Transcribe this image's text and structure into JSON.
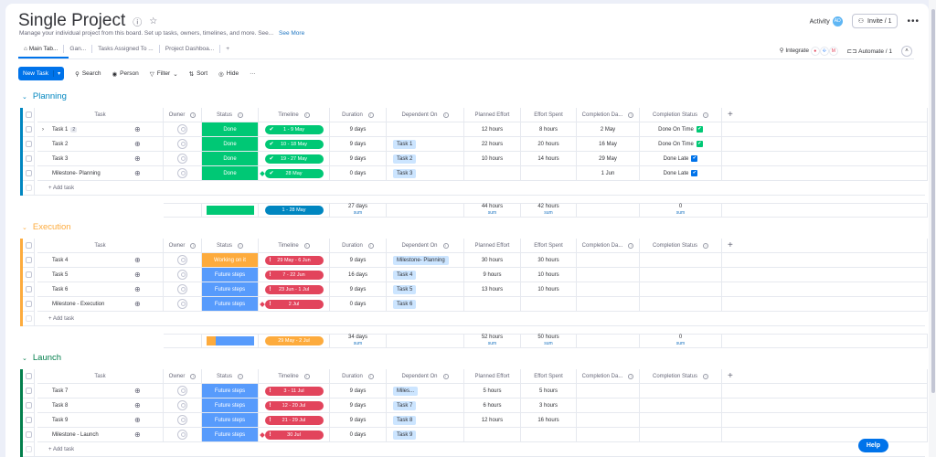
{
  "header": {
    "title": "Single Project",
    "description": "Manage your individual project from this board. Set up tasks, owners, timelines, and more. See...",
    "see_more": "See More",
    "activity": "Activity",
    "activity_avatar": "AD",
    "invite": "Invite / 1"
  },
  "tabs": [
    {
      "label": "Main Tab...",
      "active": true
    },
    {
      "label": "Gan..."
    },
    {
      "label": "Tasks Assigned To ..."
    },
    {
      "label": "Project Dashboa..."
    },
    {
      "label": "+"
    }
  ],
  "integrations": {
    "integrate": "Integrate",
    "automate": "Automate / 1"
  },
  "toolbar": {
    "new_task": "New Task",
    "search": "Search",
    "person": "Person",
    "filter": "Filter",
    "sort": "Sort",
    "hide": "Hide"
  },
  "columns": {
    "task": "Task",
    "owner": "Owner",
    "status": "Status",
    "timeline": "Timeline",
    "duration": "Duration",
    "dependent_on": "Dependent On",
    "planned_effort": "Planned Effort",
    "effort_spent": "Effort Spent",
    "completion_date": "Completion Da...",
    "completion_status": "Completion Status"
  },
  "colors": {
    "done": "#00c875",
    "working": "#fdab3d",
    "future": "#579bfc",
    "late": "#e2445c",
    "planning": "#0086c0",
    "execution": "#fdab3d",
    "launch": "#037f4c"
  },
  "add_task": "+ Add task",
  "sum_label": "sum",
  "groups": [
    {
      "name": "Planning",
      "color": "#0086c0",
      "rows": [
        {
          "task": "Task 1",
          "subitems": "2",
          "status": "Done",
          "status_color": "#00c875",
          "timeline": "1 - 9 May",
          "tl_color": "#00c875",
          "tl_mark": "✔",
          "duration": "9 days",
          "dependent": "",
          "planned": "12 hours",
          "spent": "8 hours",
          "cdate": "2 May",
          "cstatus": "Done On Time",
          "cstatus_color": "#00c875"
        },
        {
          "task": "Task 2",
          "status": "Done",
          "status_color": "#00c875",
          "timeline": "10 - 18 May",
          "tl_color": "#00c875",
          "tl_mark": "✔",
          "duration": "9 days",
          "dependent": "Task 1",
          "planned": "22 hours",
          "spent": "20 hours",
          "cdate": "16 May",
          "cstatus": "Done On Time",
          "cstatus_color": "#00c875"
        },
        {
          "task": "Task 3",
          "status": "Done",
          "status_color": "#00c875",
          "timeline": "19 - 27 May",
          "tl_color": "#00c875",
          "tl_mark": "✔",
          "duration": "9 days",
          "dependent": "Task 2",
          "planned": "10 hours",
          "spent": "14 hours",
          "cdate": "29 May",
          "cstatus": "Done Late",
          "cstatus_color": "#0073ea"
        },
        {
          "task": "Milestone- Planning",
          "milestone": true,
          "status": "Done",
          "status_color": "#00c875",
          "timeline": "28 May",
          "tl_color": "#00c875",
          "tl_mark": "✔",
          "duration": "0 days",
          "dependent": "Task 3",
          "planned": "",
          "spent": "",
          "cdate": "1 Jun",
          "cstatus": "Done Late",
          "cstatus_color": "#0073ea"
        }
      ],
      "summary": {
        "timeline": "1 - 28 May",
        "timeline_color": "#0086c0",
        "duration": "27 days",
        "planned": "44 hours",
        "spent": "42 hours",
        "cstatus": "0"
      }
    },
    {
      "name": "Execution",
      "color": "#fdab3d",
      "rows": [
        {
          "task": "Task 4",
          "status": "Working on it",
          "status_color": "#fdab3d",
          "timeline": "29 May - 6 Jun",
          "tl_color": "#e2445c",
          "tl_mark": "!",
          "duration": "9 days",
          "dependent": "Milestone- Planning",
          "planned": "30 hours",
          "spent": "30 hours",
          "cdate": "",
          "cstatus": ""
        },
        {
          "task": "Task 5",
          "status": "Future steps",
          "status_color": "#579bfc",
          "timeline": "7 - 22 Jun",
          "tl_color": "#e2445c",
          "tl_mark": "!",
          "duration": "16 days",
          "dependent": "Task 4",
          "planned": "9 hours",
          "spent": "10 hours",
          "cdate": "",
          "cstatus": ""
        },
        {
          "task": "Task 6",
          "status": "Future steps",
          "status_color": "#579bfc",
          "timeline": "23 Jun - 1 Jul",
          "tl_color": "#e2445c",
          "tl_mark": "!",
          "duration": "9 days",
          "dependent": "Task 5",
          "planned": "13 hours",
          "spent": "10 hours",
          "cdate": "",
          "cstatus": ""
        },
        {
          "task": "Milestone - Execution",
          "milestone": true,
          "status": "Future steps",
          "status_color": "#579bfc",
          "timeline": "2 Jul",
          "tl_color": "#e2445c",
          "tl_mark": "!",
          "duration": "0 days",
          "dependent": "Task 6",
          "planned": "",
          "spent": "",
          "cdate": "",
          "cstatus": ""
        }
      ],
      "summary": {
        "timeline": "29 May - 2 Jul",
        "timeline_color": "#fdab3d",
        "duration": "34 days",
        "planned": "52 hours",
        "spent": "50 hours",
        "cstatus": "0"
      }
    },
    {
      "name": "Launch",
      "color": "#037f4c",
      "rows": [
        {
          "task": "Task 7",
          "status": "Future steps",
          "status_color": "#579bfc",
          "timeline": "3 - 11 Jul",
          "tl_color": "#e2445c",
          "tl_mark": "!",
          "duration": "9 days",
          "dependent": "Miles...",
          "planned": "5 hours",
          "spent": "5 hours",
          "cdate": "",
          "cstatus": ""
        },
        {
          "task": "Task 8",
          "status": "Future steps",
          "status_color": "#579bfc",
          "timeline": "12 - 20 Jul",
          "tl_color": "#e2445c",
          "tl_mark": "!",
          "duration": "9 days",
          "dependent": "Task 7",
          "planned": "6 hours",
          "spent": "3 hours",
          "cdate": "",
          "cstatus": ""
        },
        {
          "task": "Task 9",
          "status": "Future steps",
          "status_color": "#579bfc",
          "timeline": "21 - 29 Jul",
          "tl_color": "#e2445c",
          "tl_mark": "!",
          "duration": "9 days",
          "dependent": "Task 8",
          "planned": "12 hours",
          "spent": "16 hours",
          "cdate": "",
          "cstatus": ""
        },
        {
          "task": "Milestone - Launch",
          "milestone": true,
          "status": "Future steps",
          "status_color": "#579bfc",
          "timeline": "30 Jul",
          "tl_color": "#e2445c",
          "tl_mark": "!",
          "duration": "0 days",
          "dependent": "Task 9",
          "planned": "",
          "spent": "",
          "cdate": "",
          "cstatus": ""
        }
      ]
    }
  ],
  "help": "Help"
}
